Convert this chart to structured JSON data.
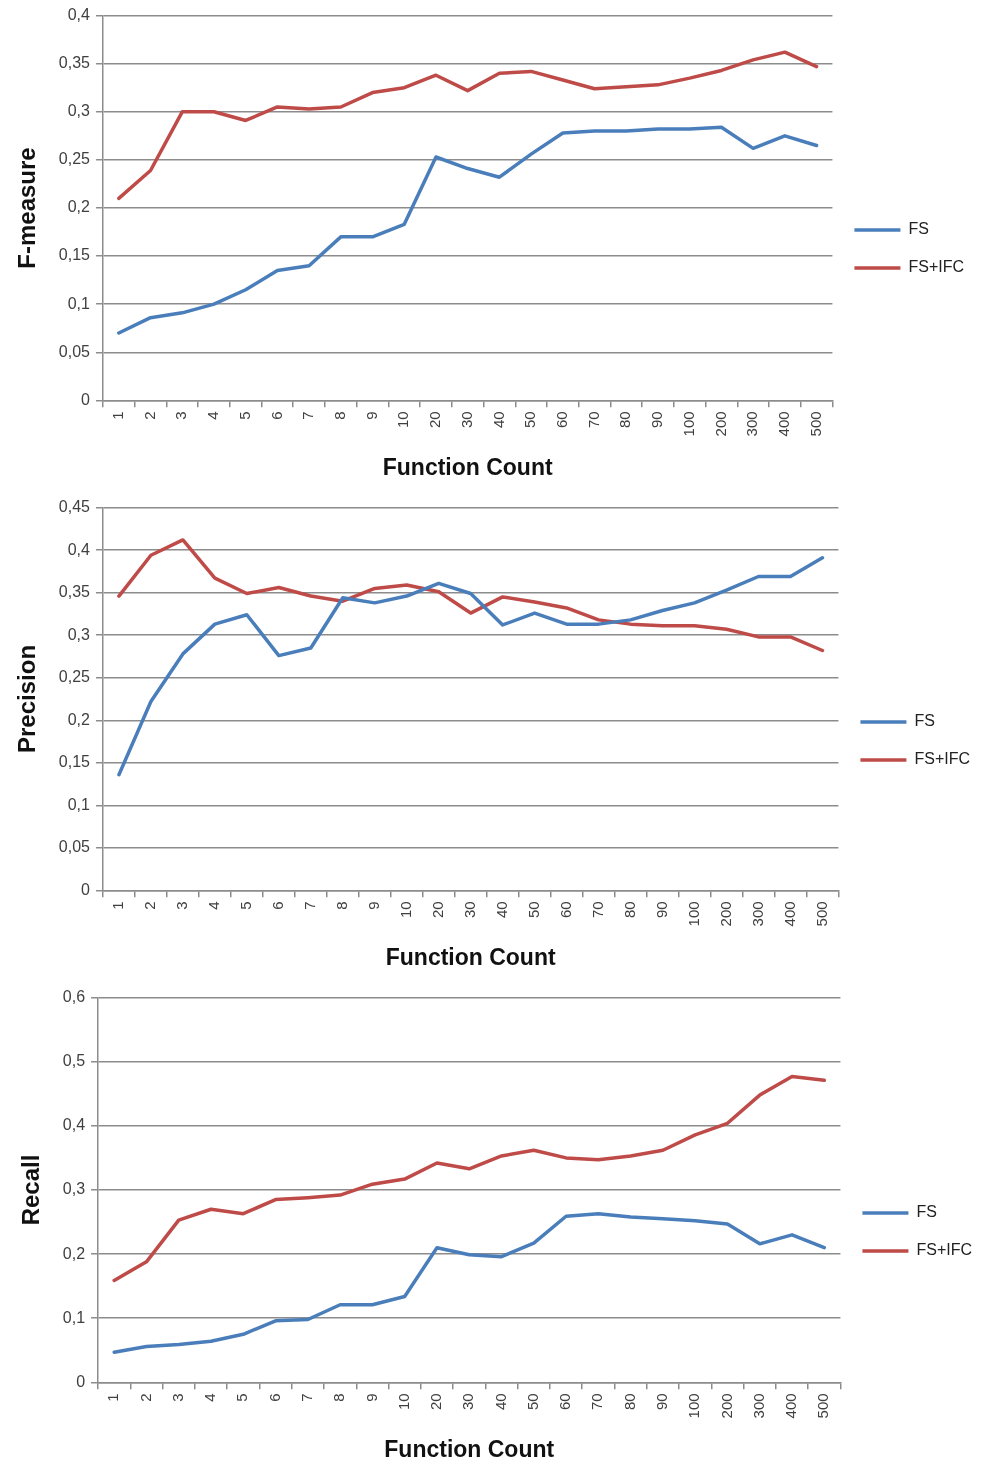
{
  "chart_data": [
    {
      "type": "line",
      "xlabel": "Function Count",
      "ylabel": "F-measure",
      "categories": [
        "1",
        "2",
        "3",
        "4",
        "5",
        "6",
        "7",
        "8",
        "9",
        "10",
        "20",
        "30",
        "40",
        "50",
        "60",
        "70",
        "80",
        "90",
        "100",
        "200",
        "300",
        "400",
        "500"
      ],
      "ylim": [
        0,
        0.4
      ],
      "yticks": [
        {
          "value": 0,
          "label": "0"
        },
        {
          "value": 0.05,
          "label": "0,05"
        },
        {
          "value": 0.1,
          "label": "0,1"
        },
        {
          "value": 0.15,
          "label": "0,15"
        },
        {
          "value": 0.2,
          "label": "0,2"
        },
        {
          "value": 0.25,
          "label": "0,25"
        },
        {
          "value": 0.3,
          "label": "0,3"
        },
        {
          "value": 0.35,
          "label": "0,35"
        },
        {
          "value": 0.4,
          "label": "0,4"
        }
      ],
      "grid": "y",
      "legend": "right",
      "marker": "none",
      "series": [
        {
          "name": "FS",
          "color": "#4a7ebb",
          "values": [
            0.07,
            0.086,
            0.091,
            0.1,
            0.115,
            0.135,
            0.14,
            0.17,
            0.17,
            0.183,
            0.253,
            0.241,
            0.232,
            0.256,
            0.278,
            0.28,
            0.28,
            0.282,
            0.282,
            0.284,
            0.262,
            0.275,
            0.265
          ]
        },
        {
          "name": "FS+IFC",
          "color": "#be4b48",
          "values": [
            0.21,
            0.239,
            0.3,
            0.3,
            0.291,
            0.305,
            0.303,
            0.305,
            0.32,
            0.325,
            0.338,
            0.322,
            0.34,
            0.342,
            0.333,
            0.324,
            0.326,
            0.328,
            0.335,
            0.343,
            0.354,
            0.362,
            0.347
          ]
        }
      ]
    },
    {
      "type": "line",
      "xlabel": "Function Count",
      "ylabel": "Precision",
      "categories": [
        "1",
        "2",
        "3",
        "4",
        "5",
        "6",
        "7",
        "8",
        "9",
        "10",
        "20",
        "30",
        "40",
        "50",
        "60",
        "70",
        "80",
        "90",
        "100",
        "200",
        "300",
        "400",
        "500"
      ],
      "ylim": [
        0,
        0.45
      ],
      "yticks": [
        {
          "value": 0,
          "label": "0"
        },
        {
          "value": 0.05,
          "label": "0,05"
        },
        {
          "value": 0.1,
          "label": "0,1"
        },
        {
          "value": 0.15,
          "label": "0,15"
        },
        {
          "value": 0.2,
          "label": "0,2"
        },
        {
          "value": 0.25,
          "label": "0,25"
        },
        {
          "value": 0.3,
          "label": "0,3"
        },
        {
          "value": 0.35,
          "label": "0,35"
        },
        {
          "value": 0.4,
          "label": "0,4"
        },
        {
          "value": 0.45,
          "label": "0,45"
        }
      ],
      "grid": "y",
      "legend": "right",
      "marker": "none",
      "series": [
        {
          "name": "FS",
          "color": "#4a7ebb",
          "values": [
            0.136,
            0.222,
            0.278,
            0.313,
            0.324,
            0.276,
            0.285,
            0.344,
            0.338,
            0.346,
            0.361,
            0.349,
            0.312,
            0.326,
            0.313,
            0.313,
            0.318,
            0.329,
            0.338,
            0.353,
            0.369,
            0.369,
            0.391
          ]
        },
        {
          "name": "FS+IFC",
          "color": "#be4b48",
          "values": [
            0.346,
            0.394,
            0.412,
            0.367,
            0.349,
            0.356,
            0.346,
            0.34,
            0.355,
            0.359,
            0.351,
            0.326,
            0.345,
            0.339,
            0.332,
            0.318,
            0.313,
            0.311,
            0.311,
            0.307,
            0.298,
            0.298,
            0.282
          ]
        }
      ]
    },
    {
      "type": "line",
      "xlabel": "Function Count",
      "ylabel": "Recall",
      "categories": [
        "1",
        "2",
        "3",
        "4",
        "5",
        "6",
        "7",
        "8",
        "9",
        "10",
        "20",
        "30",
        "40",
        "50",
        "60",
        "70",
        "80",
        "90",
        "100",
        "200",
        "300",
        "400",
        "500"
      ],
      "ylim": [
        0,
        0.6
      ],
      "yticks": [
        {
          "value": 0,
          "label": "0"
        },
        {
          "value": 0.1,
          "label": "0,1"
        },
        {
          "value": 0.2,
          "label": "0,2"
        },
        {
          "value": 0.3,
          "label": "0,3"
        },
        {
          "value": 0.4,
          "label": "0,4"
        },
        {
          "value": 0.5,
          "label": "0,5"
        },
        {
          "value": 0.6,
          "label": "0,6"
        }
      ],
      "grid": "y",
      "legend": "right",
      "marker": "none",
      "series": [
        {
          "name": "FS",
          "color": "#4a7ebb",
          "values": [
            0.047,
            0.056,
            0.059,
            0.064,
            0.075,
            0.096,
            0.098,
            0.121,
            0.121,
            0.134,
            0.21,
            0.199,
            0.196,
            0.217,
            0.259,
            0.263,
            0.258,
            0.255,
            0.252,
            0.247,
            0.216,
            0.23,
            0.21
          ]
        },
        {
          "name": "FS+IFC",
          "color": "#be4b48",
          "values": [
            0.159,
            0.188,
            0.253,
            0.27,
            0.263,
            0.285,
            0.288,
            0.292,
            0.309,
            0.317,
            0.342,
            0.333,
            0.353,
            0.362,
            0.35,
            0.347,
            0.353,
            0.362,
            0.386,
            0.404,
            0.448,
            0.477,
            0.471
          ]
        }
      ]
    }
  ]
}
